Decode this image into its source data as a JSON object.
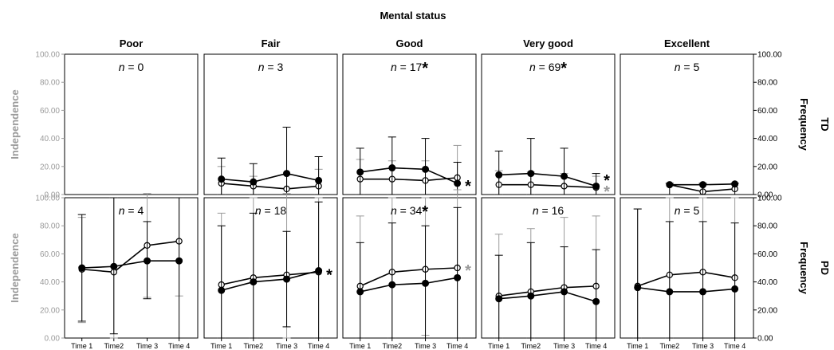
{
  "chart_data": {
    "type": "line",
    "title": "Mental status",
    "columns": [
      "Poor",
      "Fair",
      "Good",
      "Very good",
      "Excellent"
    ],
    "rows": [
      "TD",
      "PD"
    ],
    "x": [
      "Time 1",
      "Time2",
      "Time 3",
      "Time 4"
    ],
    "ylabel_left": "Independence",
    "ylabel_right": "Frequency",
    "ylim": [
      0,
      100
    ],
    "y_ticks_left": [
      "0.00",
      "20.00",
      "40.00",
      "60.00",
      "80.00",
      "100.00"
    ],
    "y_ticks_right": [
      "0.00",
      "20.00",
      "40.00",
      "60.00",
      "80.00",
      "100.00"
    ],
    "n_prefix": "n",
    "significance_marker": "*",
    "colors": {
      "independence": "#000000",
      "frequency": "#000000",
      "independence_error": "#000000",
      "frequency_error": "#9a9a9a",
      "left_axis_text": "#9a9a9a",
      "grey_star": "#9a9a9a"
    },
    "panels": [
      {
        "row": "TD",
        "column": "Poor",
        "n": "0",
        "n_star": false,
        "independence": {
          "values": [],
          "err_lo": [],
          "err_hi": []
        },
        "frequency": {
          "values": [],
          "err_lo": [],
          "err_hi": []
        },
        "end_stars": []
      },
      {
        "row": "TD",
        "column": "Fair",
        "n": "3",
        "n_star": false,
        "independence": {
          "values": [
            11,
            9,
            15,
            10
          ],
          "err_lo": [
            0,
            0,
            0,
            0
          ],
          "err_hi": [
            26,
            22,
            48,
            27
          ]
        },
        "frequency": {
          "values": [
            8,
            6,
            4,
            6
          ],
          "err_lo": [
            0,
            0,
            0,
            0
          ],
          "err_hi": [
            20,
            13,
            14,
            18
          ]
        },
        "end_stars": []
      },
      {
        "row": "TD",
        "column": "Good",
        "n": "17",
        "n_star": true,
        "independence": {
          "values": [
            16,
            19,
            18,
            8
          ],
          "err_lo": [
            0,
            0,
            0,
            0
          ],
          "err_hi": [
            33,
            41,
            40,
            23
          ]
        },
        "frequency": {
          "values": [
            11,
            11,
            10,
            12
          ],
          "err_lo": [
            0,
            0,
            0,
            0
          ],
          "err_hi": [
            25,
            24,
            24,
            35
          ]
        },
        "end_stars": [
          {
            "text": "*",
            "color": "black",
            "value": 8
          }
        ]
      },
      {
        "row": "TD",
        "column": "Very good",
        "n": "69",
        "n_star": true,
        "independence": {
          "values": [
            14,
            15,
            13,
            6
          ],
          "err_lo": [
            0,
            0,
            0,
            0
          ],
          "err_hi": [
            31,
            40,
            33,
            15
          ]
        },
        "frequency": {
          "values": [
            7,
            7,
            6,
            5
          ],
          "err_lo": [
            0,
            0,
            0,
            0
          ],
          "err_hi": [
            17,
            16,
            15,
            13
          ]
        },
        "end_stars": [
          {
            "text": "*",
            "color": "black",
            "value": 12
          },
          {
            "text": "*",
            "color": "grey",
            "value": 4
          }
        ]
      },
      {
        "row": "TD",
        "column": "Excellent",
        "n": "5",
        "n_star": false,
        "independence": {
          "values": [
            7,
            7,
            7.5
          ],
          "x_index": [
            1,
            2,
            3
          ],
          "err_lo": [
            0,
            0,
            0
          ],
          "err_hi": [
            8,
            8,
            8
          ]
        },
        "frequency": {
          "values": [
            7,
            2,
            4
          ],
          "x_index": [
            1,
            2,
            3
          ],
          "err_lo": [
            0,
            0,
            0
          ],
          "err_hi": [
            0,
            0,
            0
          ]
        },
        "end_stars": []
      },
      {
        "row": "PD",
        "column": "Poor",
        "n": "4",
        "n_star": false,
        "independence": {
          "values": [
            50,
            51,
            55,
            55
          ],
          "err_lo": [
            12,
            3,
            28,
            0
          ],
          "err_hi": [
            88,
            100,
            83,
            100
          ]
        },
        "frequency": {
          "values": [
            49,
            47,
            66,
            69
          ],
          "err_lo": [
            11,
            0,
            29,
            30
          ],
          "err_hi": [
            86,
            100,
            103,
            100
          ]
        },
        "end_stars": []
      },
      {
        "row": "PD",
        "column": "Fair",
        "n": "18",
        "n_star": false,
        "independence": {
          "values": [
            34,
            40,
            42,
            48
          ],
          "err_lo": [
            0,
            0,
            8,
            0
          ],
          "err_hi": [
            80,
            89,
            76,
            97
          ]
        },
        "frequency": {
          "values": [
            38,
            43,
            45,
            47
          ],
          "err_lo": [
            0,
            0,
            0,
            0
          ],
          "err_hi": [
            89,
            100,
            103,
            100
          ]
        },
        "end_stars": [
          {
            "text": "*",
            "color": "black",
            "value": 47
          }
        ]
      },
      {
        "row": "PD",
        "column": "Good",
        "n": "34",
        "n_star": true,
        "independence": {
          "values": [
            33,
            38,
            39,
            43
          ],
          "err_lo": [
            0,
            0,
            0,
            0
          ],
          "err_hi": [
            68,
            82,
            80,
            93
          ]
        },
        "frequency": {
          "values": [
            37,
            47,
            49,
            50
          ],
          "err_lo": [
            0,
            0,
            2,
            0
          ],
          "err_hi": [
            87,
            100,
            100,
            106
          ]
        },
        "end_stars": [
          {
            "text": "*",
            "color": "grey",
            "value": 50
          }
        ]
      },
      {
        "row": "PD",
        "column": "Very good",
        "n": "16",
        "n_star": false,
        "independence": {
          "values": [
            28,
            30,
            33,
            26
          ],
          "err_lo": [
            0,
            0,
            0,
            0
          ],
          "err_hi": [
            59,
            68,
            65,
            63
          ]
        },
        "frequency": {
          "values": [
            30,
            33,
            36,
            37
          ],
          "err_lo": [
            0,
            0,
            0,
            0
          ],
          "err_hi": [
            74,
            78,
            86,
            87
          ]
        },
        "end_stars": []
      },
      {
        "row": "PD",
        "column": "Excellent",
        "n": "5",
        "n_star": false,
        "independence": {
          "values": [
            36,
            33,
            33,
            35
          ],
          "err_lo": [
            0,
            0,
            0,
            0
          ],
          "err_hi": [
            92,
            83,
            83,
            82
          ]
        },
        "frequency": {
          "values": [
            37,
            45,
            47,
            43
          ],
          "err_lo": [
            0,
            0,
            0,
            0
          ],
          "err_hi": [
            92,
            100,
            100,
            100
          ]
        },
        "end_stars": []
      }
    ]
  }
}
